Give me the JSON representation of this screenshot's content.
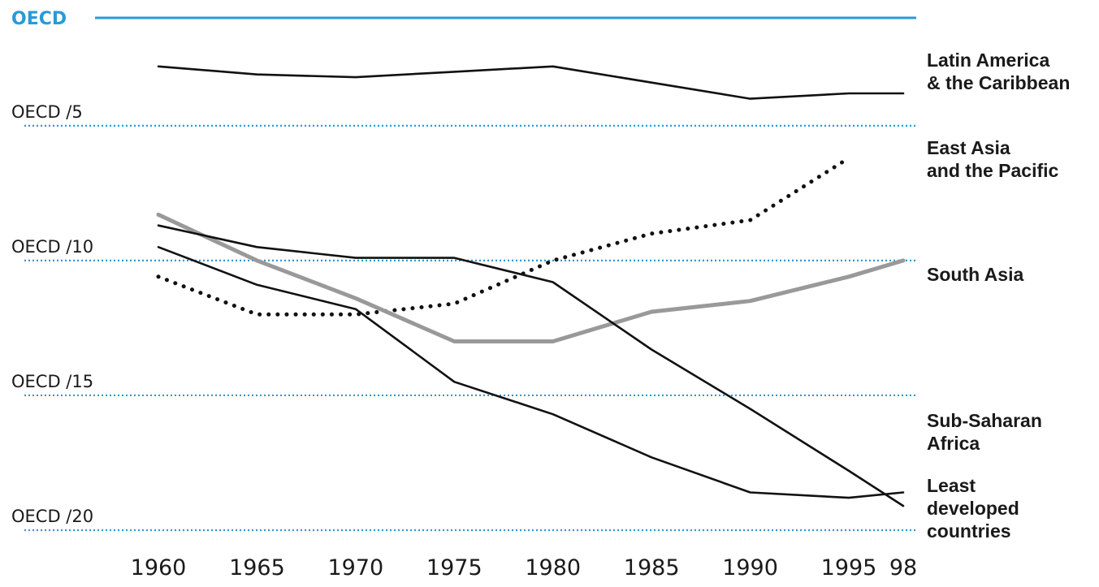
{
  "chart_data": {
    "type": "line",
    "title": "",
    "xlabel": "",
    "ylabel": "",
    "x": [
      1960,
      1965,
      1970,
      1975,
      1980,
      1985,
      1990,
      1995,
      1998
    ],
    "x_tick_labels": [
      "1960",
      "1965",
      "1970",
      "1975",
      "1980",
      "1985",
      "1990",
      "1995",
      "98"
    ],
    "y_scale": "reciprocal",
    "ylim": [
      1,
      20
    ],
    "grid": false,
    "reference_lines": [
      {
        "label": "OECD",
        "divisor": 1,
        "color": "#2a9ad6",
        "style": "solid"
      },
      {
        "label": "OECD /5",
        "divisor": 5,
        "color": "#2a9ad6",
        "style": "dotted"
      },
      {
        "label": "OECD /10",
        "divisor": 10,
        "color": "#2a9ad6",
        "style": "dotted"
      },
      {
        "label": "OECD /15",
        "divisor": 15,
        "color": "#2a9ad6",
        "style": "dotted"
      },
      {
        "label": "OECD /20",
        "divisor": 20,
        "color": "#2a9ad6",
        "style": "dotted"
      }
    ],
    "series": [
      {
        "name": "Latin America & the Caribbean",
        "label_lines": [
          "Latin America",
          "& the Caribbean"
        ],
        "color": "#111111",
        "style": "solid",
        "values": [
          2.8,
          3.1,
          3.2,
          3.0,
          2.8,
          3.4,
          4.0,
          3.8,
          3.8
        ]
      },
      {
        "name": "East Asia and the Pacific",
        "label_lines": [
          "East  Asia",
          "and the Pacific"
        ],
        "color": "#111111",
        "style": "dotted",
        "values": [
          10.6,
          12.0,
          12.0,
          11.6,
          10.0,
          9.0,
          8.5,
          6.2,
          null
        ]
      },
      {
        "name": "South Asia",
        "label_lines": [
          "South Asia"
        ],
        "color": "#999999",
        "style": "solid",
        "values": [
          8.3,
          10.0,
          11.4,
          13.0,
          13.0,
          11.9,
          11.5,
          10.6,
          10.0
        ]
      },
      {
        "name": "Sub-Saharan Africa",
        "label_lines": [
          "Sub-Saharan",
          "Africa"
        ],
        "color": "#111111",
        "style": "solid",
        "values": [
          8.7,
          9.5,
          9.9,
          9.9,
          10.8,
          13.3,
          15.5,
          17.8,
          19.1
        ]
      },
      {
        "name": "Least developed countries",
        "label_lines": [
          "Least",
          "developed",
          "countries"
        ],
        "color": "#111111",
        "style": "solid",
        "values": [
          9.5,
          10.9,
          11.8,
          14.5,
          15.7,
          17.3,
          18.6,
          18.8,
          18.6
        ]
      }
    ]
  }
}
